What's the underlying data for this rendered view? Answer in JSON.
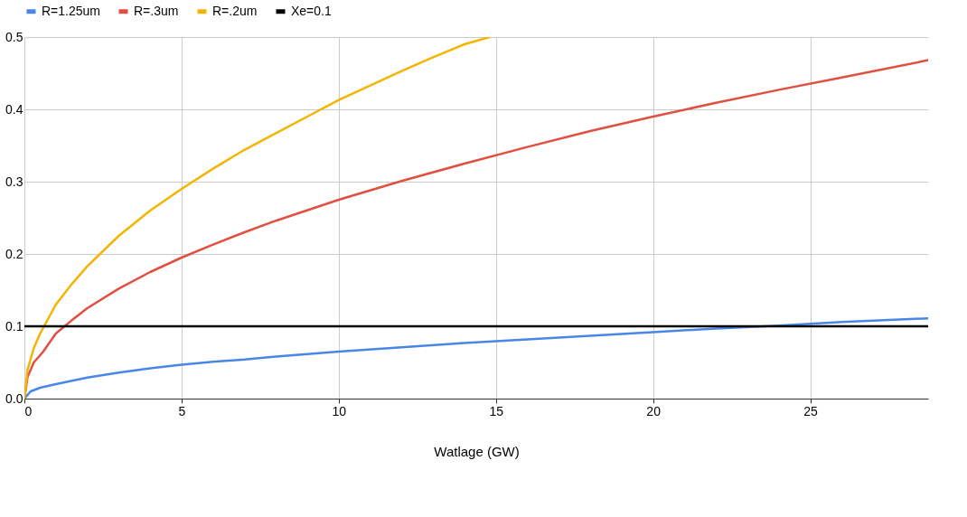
{
  "chart_data": {
    "type": "line",
    "xlabel": "Watlage (GW)",
    "xlim": [
      0,
      28.75
    ],
    "ylim": [
      0,
      0.5
    ],
    "xticks": [
      0,
      5,
      10,
      15,
      20,
      25
    ],
    "yticks": [
      {
        "value": 0,
        "label": "0.0"
      },
      0.1,
      0.2,
      0.3,
      0.4,
      0.5
    ],
    "grid": true,
    "legend": "top",
    "line_style": "solid",
    "marker": "none",
    "series": [
      {
        "name": "R=1.25um",
        "color": "#4a86e8",
        "x": [
          0,
          0.2,
          0.5,
          1,
          2,
          3,
          4,
          5,
          6,
          7,
          8,
          10,
          12,
          14,
          16,
          18,
          20,
          22,
          24,
          26,
          28.75
        ],
        "values": [
          0,
          0.01,
          0.015,
          0.02,
          0.029,
          0.036,
          0.042,
          0.047,
          0.051,
          0.054,
          0.058,
          0.065,
          0.071,
          0.077,
          0.082,
          0.087,
          0.092,
          0.097,
          0.101,
          0.106,
          0.111
        ]
      },
      {
        "name": "R=.3um",
        "color": "#e04f3f",
        "x": [
          0,
          0.1,
          0.3,
          0.6,
          1,
          1.5,
          2,
          3,
          4,
          5,
          6,
          7,
          8,
          10,
          12,
          14,
          16,
          18,
          20,
          22,
          24,
          26,
          28.75
        ],
        "values": [
          0,
          0.03,
          0.05,
          0.065,
          0.09,
          0.108,
          0.125,
          0.152,
          0.175,
          0.195,
          0.213,
          0.23,
          0.246,
          0.275,
          0.301,
          0.325,
          0.348,
          0.37,
          0.39,
          0.409,
          0.427,
          0.444,
          0.468
        ]
      },
      {
        "name": "R=.2um",
        "color": "#f4b400",
        "x": [
          0,
          0.1,
          0.3,
          0.5,
          1,
          1.5,
          2,
          3,
          4,
          5,
          6,
          7,
          8,
          9,
          10,
          11,
          12,
          13,
          14,
          14.8
        ],
        "values": [
          0,
          0.04,
          0.07,
          0.09,
          0.13,
          0.158,
          0.183,
          0.225,
          0.26,
          0.29,
          0.318,
          0.344,
          0.367,
          0.39,
          0.413,
          0.433,
          0.453,
          0.472,
          0.49,
          0.5
        ]
      },
      {
        "name": "Xe=0.1",
        "color": "#000000",
        "x": [
          0,
          28.75
        ],
        "values": [
          0.1,
          0.1
        ]
      }
    ]
  }
}
